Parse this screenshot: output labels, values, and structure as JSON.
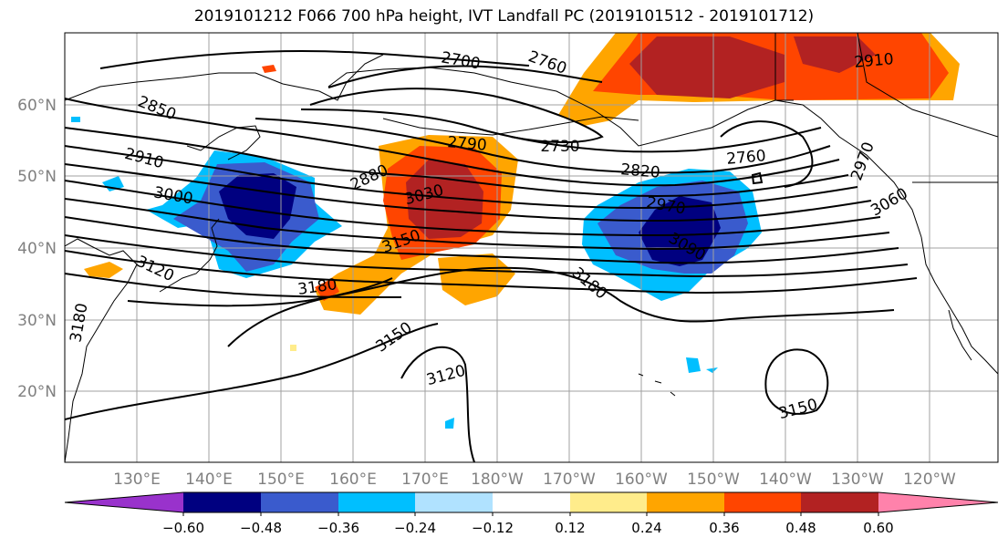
{
  "title": "2019101212 F066 700 hPa height, IVT Landfall PC (2019101512 - 2019101712)",
  "map": {
    "lon_labels": [
      "130°E",
      "140°E",
      "150°E",
      "160°E",
      "170°E",
      "180°W",
      "170°W",
      "160°W",
      "150°W",
      "140°W",
      "130°W",
      "120°W"
    ],
    "lat_labels": [
      "60°N",
      "50°N",
      "40°N",
      "30°N",
      "20°N"
    ],
    "contour_labels": [
      {
        "text": "2700",
        "rot": 10
      },
      {
        "text": "2760",
        "rot": 20
      },
      {
        "text": "2910",
        "rot": -5
      },
      {
        "text": "2850",
        "rot": 22
      },
      {
        "text": "2910",
        "rot": 15
      },
      {
        "text": "3000",
        "rot": 10
      },
      {
        "text": "2790",
        "rot": 5
      },
      {
        "text": "2730",
        "rot": 0
      },
      {
        "text": "2820",
        "rot": 5
      },
      {
        "text": "2880",
        "rot": -25
      },
      {
        "text": "3030",
        "rot": -15
      },
      {
        "text": "2970",
        "rot": 10
      },
      {
        "text": "2760",
        "rot": -5
      },
      {
        "text": "2970",
        "rot": -70
      },
      {
        "text": "3060",
        "rot": -30
      },
      {
        "text": "3150",
        "rot": -20
      },
      {
        "text": "3090",
        "rot": 30
      },
      {
        "text": "3120",
        "rot": 25
      },
      {
        "text": "3180",
        "rot": -8
      },
      {
        "text": "3180",
        "rot": 40
      },
      {
        "text": "3180",
        "rot": -80
      },
      {
        "text": "3150",
        "rot": -35
      },
      {
        "text": "3120",
        "rot": -15
      },
      {
        "text": "3150",
        "rot": -15
      }
    ]
  },
  "colorbar": {
    "ticks": [
      "−0.60",
      "−0.48",
      "−0.36",
      "−0.24",
      "−0.12",
      "0.12",
      "0.24",
      "0.36",
      "0.48",
      "0.60"
    ],
    "colors": [
      "#9932cc",
      "#000080",
      "#3a5bcd",
      "#00bfff",
      "#b0e2ff",
      "#ffffff",
      "#ffec8b",
      "#ffa500",
      "#ff4500",
      "#b22222",
      "#ff82ab"
    ]
  }
}
